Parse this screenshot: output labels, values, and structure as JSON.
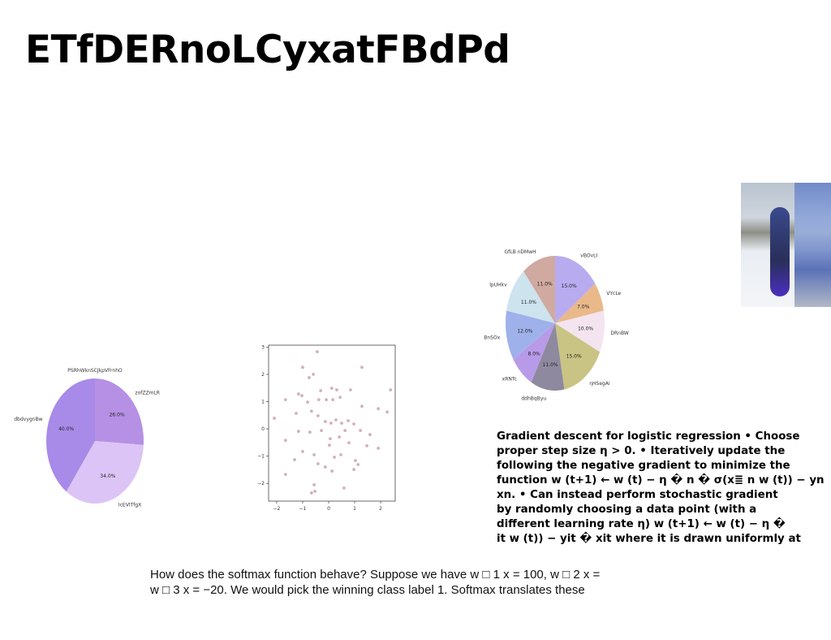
{
  "title": "ETfDERnoLCyxatFBdPd",
  "chart_data": [
    {
      "type": "pie",
      "title": "PSRhWknSCJkpVFrnhO",
      "categories": [
        "zofZZmLR",
        "IcEVITfgX",
        "dbdvygnBw"
      ],
      "values": [
        26.0,
        34.0,
        40.0
      ],
      "value_labels": [
        "26.0%",
        "34.0%",
        "40.0%"
      ],
      "colors": [
        "#b590e4",
        "#dcc4f6",
        "#a88ae8"
      ]
    },
    {
      "type": "scatter",
      "color": "#c9a3b0",
      "x": [
        -0.44,
        -1.0,
        -0.75,
        -0.59,
        1.28,
        0.12,
        0.31,
        -1.16,
        -1.03,
        -0.31,
        0.44,
        0.84,
        2.38,
        -1.66,
        -0.81,
        -0.38,
        -0.09,
        0.16,
        1.28,
        1.91,
        2.25,
        -2.09,
        -1.25,
        -0.66,
        -0.41,
        -0.13,
        0.09,
        0.28,
        0.5,
        0.75,
        0.97,
        -1.66,
        -1.16,
        -0.72,
        -0.28,
        0.06,
        0.41,
        0.63,
        0.78,
        1.47,
        1.91,
        -1.31,
        -1.0,
        -0.56,
        0.03,
        0.22,
        0.47,
        1.03,
        1.13,
        -1.66,
        -0.41,
        -0.13,
        0.13,
        0.97,
        -0.56,
        0.59,
        -0.66,
        -0.53,
        1.59,
        1.22
      ],
      "values": [
        2.83,
        2.26,
        1.88,
        2.0,
        2.26,
        1.49,
        1.43,
        1.28,
        1.22,
        1.4,
        1.16,
        1.43,
        1.43,
        1.07,
        0.98,
        1.07,
        1.07,
        1.07,
        0.83,
        0.74,
        0.62,
        0.39,
        0.57,
        0.65,
        0.48,
        0.27,
        0.21,
        0.33,
        0.21,
        0.3,
        0.18,
        -0.42,
        -0.09,
        -0.12,
        -0.06,
        -0.36,
        -0.3,
        -0.06,
        -0.51,
        -0.62,
        -0.71,
        -1.13,
        -0.83,
        -0.95,
        -0.6,
        -1.04,
        -0.95,
        -1.16,
        -1.31,
        -1.67,
        -1.28,
        -1.4,
        -1.55,
        -1.49,
        -2.05,
        -2.17,
        -2.35,
        -2.29,
        -0.21,
        -0.06
      ],
      "xlim": [
        -2.31,
        2.56
      ],
      "ylim": [
        -2.65,
        3.07
      ],
      "xticks": [
        {
          "value": -2,
          "label": "−2"
        },
        {
          "value": -1,
          "label": "−1"
        },
        0,
        1,
        2
      ],
      "yticks": [
        {
          "value": -2,
          "label": "−2"
        },
        {
          "value": -1,
          "label": "−1"
        },
        0,
        1,
        2,
        3
      ]
    },
    {
      "type": "pie",
      "categories": [
        "vBOvLI",
        "VYcLe",
        "DRnBW",
        "ηHSegAi",
        "ddhBqByu",
        "xRNTc",
        "BnSOx",
        "lpUHkv",
        "GfLB nDMwH"
      ],
      "values": [
        15.0,
        7.0,
        10.0,
        15.0,
        11.0,
        8.0,
        12.0,
        11.0,
        11.0
      ],
      "value_labels": [
        "15.0%",
        "7.0%",
        "10.0%",
        "15.0%",
        "11.0%",
        "8.0%",
        "12.0%",
        "11.0%",
        "11.0%"
      ],
      "colors": [
        "#b8abf0",
        "#e9b98a",
        "#f4e4f0",
        "#c9c484",
        "#8e899f",
        "#b89be8",
        "#9fb1ea",
        "#cde3ee",
        "#d0a9a0"
      ]
    }
  ],
  "notes": {
    "lines": [
      "Gradient descent for logistic regression • Choose",
      "proper step size η > 0. • Iteratively update the",
      "following the negative gradient to minimize the",
      "function w (t+1) ← w (t) − η � n � σ(x≣ n w (t)) − yn",
      "xn. • Can instead perform stochastic gradient",
      "by randomly choosing a data point (with a",
      "different learning rate η) w (t+1) ← w (t) − η �",
      "it w (t)) − yit � xit where it is drawn uniformly at"
    ]
  },
  "footer": {
    "lines": [
      "How does the softmax function behave? Suppose we have w □ 1 x = 100, w □ 2 x =",
      "w □ 3 x = −20. We would pick the winning class label 1. Softmax translates these"
    ]
  }
}
